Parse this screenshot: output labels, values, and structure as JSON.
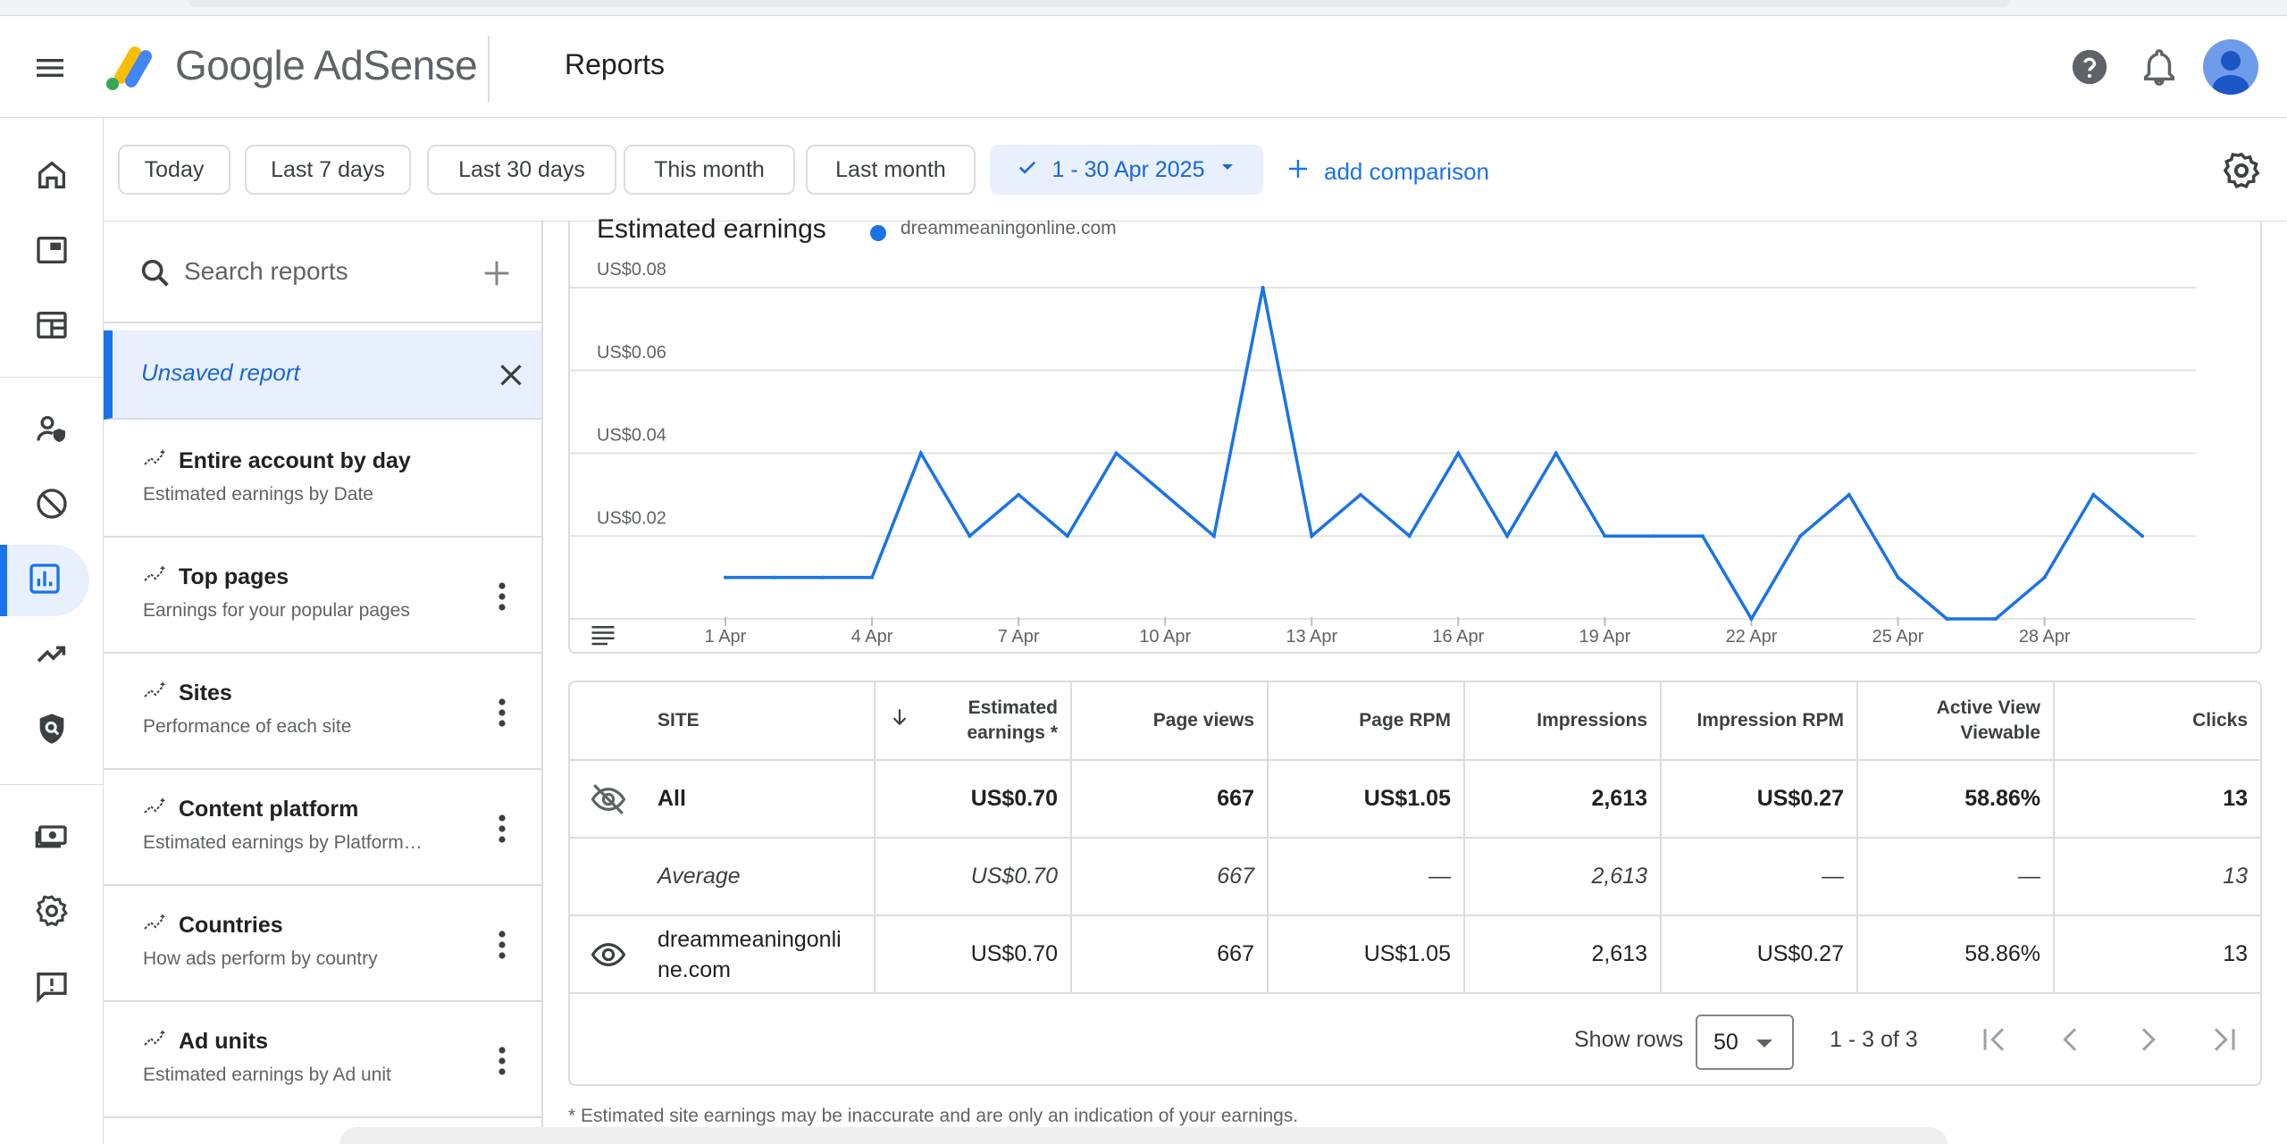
{
  "app": {
    "brand": "Google AdSense",
    "page_title": "Reports"
  },
  "header_icons": [
    "menu-icon",
    "help-icon",
    "notifications-icon",
    "account-avatar"
  ],
  "nav_rail": {
    "items": [
      {
        "name": "home",
        "icon": "home-icon"
      },
      {
        "name": "ads",
        "icon": "ads-icon"
      },
      {
        "name": "sites",
        "icon": "sites-icon"
      },
      {
        "name": "privacy-messaging",
        "icon": "privacy-icon"
      },
      {
        "name": "blocking-controls",
        "icon": "block-icon"
      },
      {
        "name": "reports",
        "icon": "reports-icon",
        "active": true
      },
      {
        "name": "optimization",
        "icon": "trending-icon"
      },
      {
        "name": "policy-center",
        "icon": "policy-icon"
      },
      {
        "name": "payments",
        "icon": "payments-icon"
      },
      {
        "name": "account",
        "icon": "settings-icon"
      },
      {
        "name": "feedback",
        "icon": "feedback-icon"
      }
    ]
  },
  "filters": {
    "chips": [
      "Today",
      "Last 7 days",
      "Last 30 days",
      "This month",
      "Last month"
    ],
    "selected_range": "1 - 30 Apr 2025",
    "add_comparison": "add comparison"
  },
  "reports_panel": {
    "search_placeholder": "Search reports",
    "unsaved_label": "Unsaved report",
    "items": [
      {
        "title": "Entire account by day",
        "subtitle": "Estimated earnings by Date"
      },
      {
        "title": "Top pages",
        "subtitle": "Earnings for your popular pages"
      },
      {
        "title": "Sites",
        "subtitle": "Performance of each site"
      },
      {
        "title": "Content platform",
        "subtitle": "Estimated earnings by Platform…"
      },
      {
        "title": "Countries",
        "subtitle": "How ads perform by country"
      },
      {
        "title": "Ad units",
        "subtitle": "Estimated earnings by Ad unit"
      }
    ]
  },
  "chart": {
    "title": "Estimated earnings",
    "legend": "dreammeaningonline.com",
    "accent": "#1a73e8"
  },
  "chart_data": {
    "type": "line",
    "title": "Estimated earnings",
    "series": [
      {
        "name": "dreammeaningonline.com",
        "values": [
          0.01,
          0.01,
          0.01,
          0.01,
          0.04,
          0.02,
          0.03,
          0.02,
          0.04,
          0.03,
          0.02,
          0.08,
          0.02,
          0.03,
          0.02,
          0.04,
          0.02,
          0.04,
          0.02,
          0.02,
          0.02,
          0.0,
          0.02,
          0.03,
          0.01,
          0.0,
          0.0,
          0.01,
          0.03,
          0.02
        ]
      }
    ],
    "x_ticks": [
      "1 Apr",
      "4 Apr",
      "7 Apr",
      "10 Apr",
      "13 Apr",
      "16 Apr",
      "19 Apr",
      "22 Apr",
      "25 Apr",
      "28 Apr"
    ],
    "y_ticks": [
      "US$0.02",
      "US$0.04",
      "US$0.06",
      "US$0.08"
    ],
    "ylim": [
      0,
      0.08
    ],
    "grid": true
  },
  "table": {
    "columns": [
      "SITE",
      "Estimated earnings *",
      "Page views",
      "Page RPM",
      "Impressions",
      "Impression RPM",
      "Active View Viewable",
      "Clicks"
    ],
    "rows": [
      {
        "site": "All",
        "values": [
          "US$0.70",
          "667",
          "US$1.05",
          "2,613",
          "US$0.27",
          "58.86%",
          "13"
        ]
      },
      {
        "site": "Average",
        "values": [
          "US$0.70",
          "667",
          "—",
          "2,613",
          "—",
          "—",
          "13"
        ]
      },
      {
        "site": "dreammeaningonline.com",
        "site_line1": "dreammeaningonli",
        "site_line2": "ne.com",
        "values": [
          "US$0.70",
          "667",
          "US$1.05",
          "2,613",
          "US$0.27",
          "58.86%",
          "13"
        ]
      }
    ],
    "show_rows_label": "Show rows",
    "rows_per_page": "50",
    "page_info": "1 - 3 of 3"
  },
  "footnote": "* Estimated site earnings may be inaccurate and are only an indication of your earnings."
}
